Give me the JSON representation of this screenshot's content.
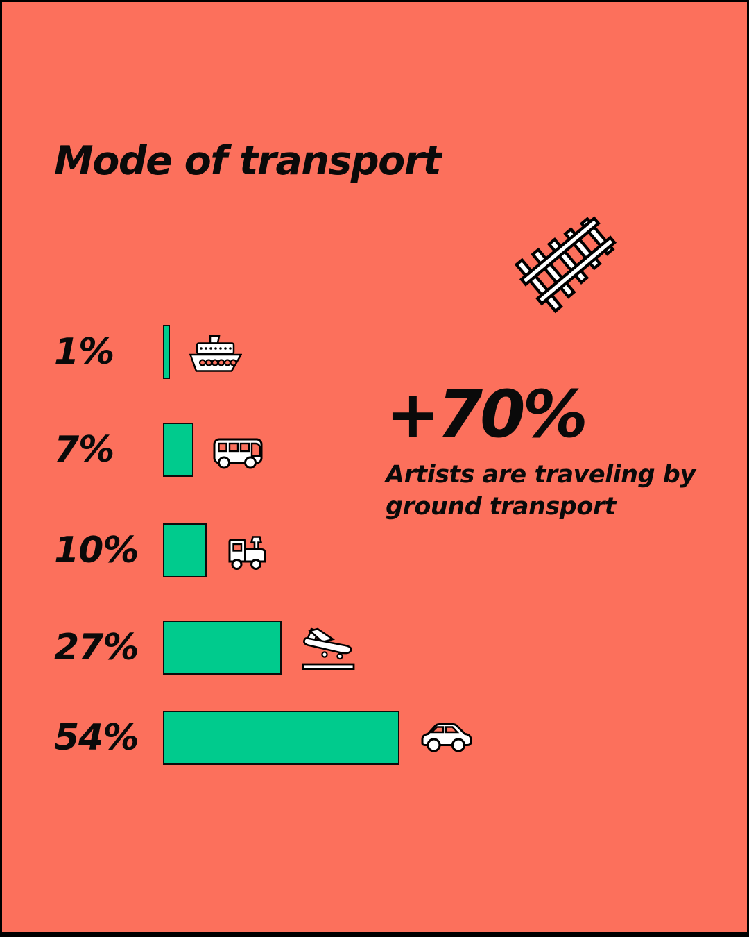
{
  "page": {
    "background_color": "#fc705c",
    "bar_color": "#00cb8d",
    "text_color": "#0a0a0a",
    "icon_style_colors": {
      "fill": "#ffffff",
      "outline": "#000000"
    },
    "decor_icon": "railway-tracks-icon"
  },
  "title": "Mode of transport",
  "chart_data": {
    "type": "bar",
    "orientation": "horizontal",
    "title": "Mode of transport",
    "unit": "%",
    "categories": [
      "Ship",
      "Bus",
      "Train",
      "Plane",
      "Car"
    ],
    "values": [
      1,
      7,
      10,
      27,
      54
    ],
    "labels": [
      "1%",
      "7%",
      "10%",
      "27%",
      "54%"
    ],
    "icons": [
      "ship-icon",
      "bus-icon",
      "train-icon",
      "plane-landing-icon",
      "car-icon"
    ],
    "xlim": [
      0,
      54
    ],
    "grid": false,
    "legend": false,
    "bar_color": "#00cb8d"
  },
  "annotation": {
    "headline": "+70%",
    "body": "Artists are traveling by ground transport",
    "body_lines": [
      "Artists are traveling by",
      "ground transport"
    ]
  }
}
